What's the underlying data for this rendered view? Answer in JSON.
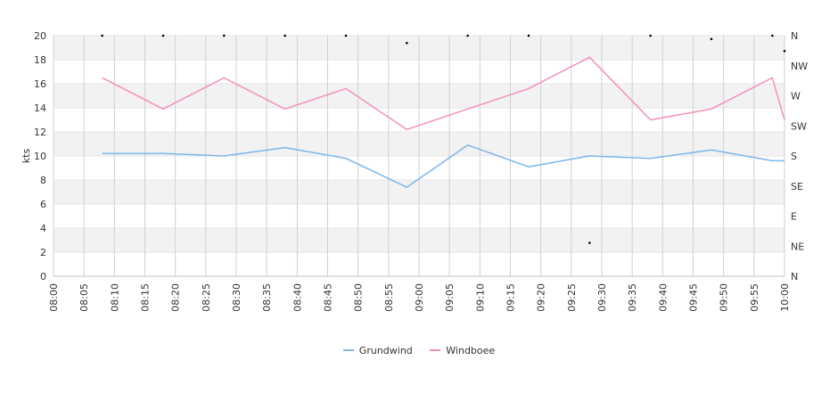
{
  "chart_data": {
    "type": "line",
    "ylabel": "kts",
    "ylim": [
      0,
      20
    ],
    "yticks": [
      "0",
      "2",
      "4",
      "6",
      "8",
      "10",
      "12",
      "14",
      "16",
      "18",
      "20"
    ],
    "x_tick_labels": [
      "08:00",
      "08:05",
      "08:10",
      "08:15",
      "08:20",
      "08:25",
      "08:30",
      "08:35",
      "08:40",
      "08:45",
      "08:50",
      "08:55",
      "09:00",
      "09:05",
      "09:10",
      "09:15",
      "09:20",
      "09:25",
      "09:30",
      "09:35",
      "09:40",
      "09:45",
      "09:50",
      "09:55",
      "10:00"
    ],
    "xlim_minutes": [
      0,
      120
    ],
    "y2_labels": [
      "N",
      "NE",
      "E",
      "SE",
      "S",
      "SW",
      "W",
      "NW",
      "N"
    ],
    "y2lim_degrees": [
      0,
      360
    ],
    "grid": "horizontal bands + vertical lines",
    "legend_position": "bottom-center",
    "x": [
      "08:08",
      "08:18",
      "08:28",
      "08:38",
      "08:48",
      "08:58",
      "09:08",
      "09:18",
      "09:28",
      "09:38",
      "09:48",
      "09:58",
      "10:00"
    ],
    "series": [
      {
        "name": "Grundwind",
        "color": "#7cb5ec",
        "values": [
          10.2,
          10.2,
          10.0,
          10.7,
          9.8,
          7.4,
          10.9,
          9.1,
          10.0,
          9.8,
          10.5,
          9.6,
          9.6
        ]
      },
      {
        "name": "Windboee",
        "color": "#f28fbf",
        "values": [
          16.5,
          13.9,
          16.5,
          13.9,
          15.6,
          12.2,
          13.9,
          15.6,
          18.2,
          13.0,
          13.9,
          16.5,
          13.0
        ]
      }
    ],
    "direction_points": [
      {
        "x": "08:08",
        "deg": 360
      },
      {
        "x": "08:18",
        "deg": 360
      },
      {
        "x": "08:28",
        "deg": 360
      },
      {
        "x": "08:38",
        "deg": 360
      },
      {
        "x": "08:48",
        "deg": 360
      },
      {
        "x": "08:58",
        "deg": 349
      },
      {
        "x": "09:08",
        "deg": 360
      },
      {
        "x": "09:18",
        "deg": 360
      },
      {
        "x": "09:28",
        "deg": 50
      },
      {
        "x": "09:38",
        "deg": 360
      },
      {
        "x": "09:48",
        "deg": 355
      },
      {
        "x": "09:58",
        "deg": 360
      },
      {
        "x": "10:00",
        "deg": 337
      }
    ]
  }
}
